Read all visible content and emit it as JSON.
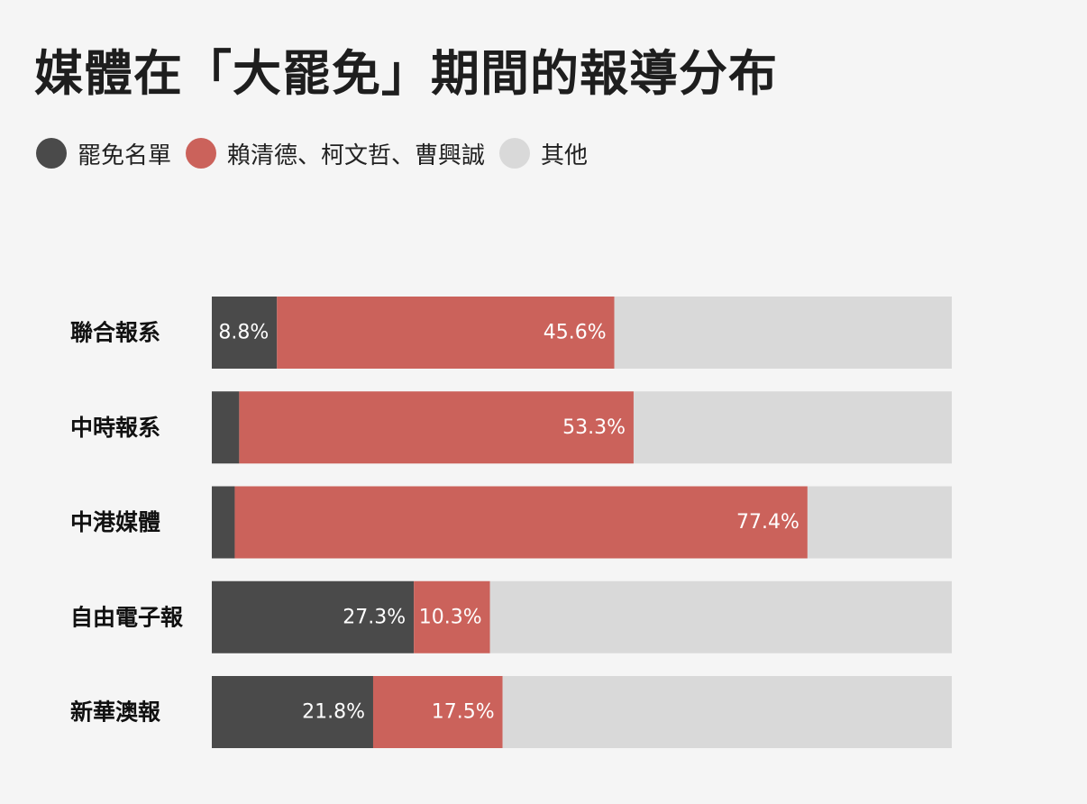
{
  "chart_data": {
    "type": "bar",
    "orientation": "horizontal",
    "stacked": true,
    "title": "媒體在「大罷免」期間的報導分布",
    "categories": [
      "聯合報系",
      "中時報系",
      "中港媒體",
      "自由電子報",
      "新華澳報"
    ],
    "series": [
      {
        "name": "罷免名單",
        "color": "#4a4a4a",
        "values": [
          8.8,
          3.7,
          3.1,
          27.3,
          21.8
        ],
        "labels": [
          "8.8%",
          "",
          "",
          "27.3%",
          "21.8%"
        ]
      },
      {
        "name": "賴清德、柯文哲、曹興誠",
        "color": "#cb625b",
        "values": [
          45.6,
          53.3,
          77.4,
          10.3,
          17.5
        ],
        "labels": [
          "45.6%",
          "53.3%",
          "77.4%",
          "10.3%",
          "17.5%"
        ]
      },
      {
        "name": "其他",
        "color": "#d9d9d9",
        "values": [
          45.6,
          43.0,
          19.5,
          62.4,
          60.7
        ],
        "labels": [
          "",
          "",
          "",
          "",
          ""
        ]
      }
    ],
    "xlim": [
      0,
      100
    ],
    "legend_position": "top-left",
    "grid": false
  }
}
